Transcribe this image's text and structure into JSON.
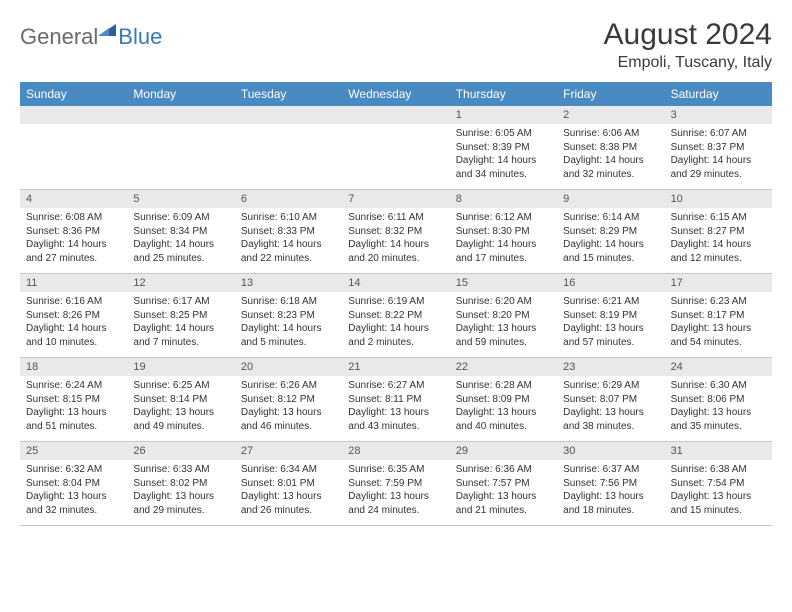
{
  "logo": {
    "text1": "General",
    "text2": "Blue"
  },
  "title": "August 2024",
  "location": "Empoli, Tuscany, Italy",
  "colors": {
    "header_bg": "#4a8ac2",
    "header_text": "#ffffff",
    "daynum_bg": "#e9e9e9",
    "body_text": "#333333",
    "logo_gray": "#6a6a6a",
    "logo_blue": "#3a79b7"
  },
  "fonts": {
    "title_size": 30,
    "location_size": 16,
    "dow_size": 12,
    "daynum_size": 11,
    "detail_size": 10
  },
  "dow": [
    "Sunday",
    "Monday",
    "Tuesday",
    "Wednesday",
    "Thursday",
    "Friday",
    "Saturday"
  ],
  "weeks": [
    [
      null,
      null,
      null,
      null,
      {
        "n": "1",
        "sr": "Sunrise: 6:05 AM",
        "ss": "Sunset: 8:39 PM",
        "dl": "Daylight: 14 hours and 34 minutes."
      },
      {
        "n": "2",
        "sr": "Sunrise: 6:06 AM",
        "ss": "Sunset: 8:38 PM",
        "dl": "Daylight: 14 hours and 32 minutes."
      },
      {
        "n": "3",
        "sr": "Sunrise: 6:07 AM",
        "ss": "Sunset: 8:37 PM",
        "dl": "Daylight: 14 hours and 29 minutes."
      }
    ],
    [
      {
        "n": "4",
        "sr": "Sunrise: 6:08 AM",
        "ss": "Sunset: 8:36 PM",
        "dl": "Daylight: 14 hours and 27 minutes."
      },
      {
        "n": "5",
        "sr": "Sunrise: 6:09 AM",
        "ss": "Sunset: 8:34 PM",
        "dl": "Daylight: 14 hours and 25 minutes."
      },
      {
        "n": "6",
        "sr": "Sunrise: 6:10 AM",
        "ss": "Sunset: 8:33 PM",
        "dl": "Daylight: 14 hours and 22 minutes."
      },
      {
        "n": "7",
        "sr": "Sunrise: 6:11 AM",
        "ss": "Sunset: 8:32 PM",
        "dl": "Daylight: 14 hours and 20 minutes."
      },
      {
        "n": "8",
        "sr": "Sunrise: 6:12 AM",
        "ss": "Sunset: 8:30 PM",
        "dl": "Daylight: 14 hours and 17 minutes."
      },
      {
        "n": "9",
        "sr": "Sunrise: 6:14 AM",
        "ss": "Sunset: 8:29 PM",
        "dl": "Daylight: 14 hours and 15 minutes."
      },
      {
        "n": "10",
        "sr": "Sunrise: 6:15 AM",
        "ss": "Sunset: 8:27 PM",
        "dl": "Daylight: 14 hours and 12 minutes."
      }
    ],
    [
      {
        "n": "11",
        "sr": "Sunrise: 6:16 AM",
        "ss": "Sunset: 8:26 PM",
        "dl": "Daylight: 14 hours and 10 minutes."
      },
      {
        "n": "12",
        "sr": "Sunrise: 6:17 AM",
        "ss": "Sunset: 8:25 PM",
        "dl": "Daylight: 14 hours and 7 minutes."
      },
      {
        "n": "13",
        "sr": "Sunrise: 6:18 AM",
        "ss": "Sunset: 8:23 PM",
        "dl": "Daylight: 14 hours and 5 minutes."
      },
      {
        "n": "14",
        "sr": "Sunrise: 6:19 AM",
        "ss": "Sunset: 8:22 PM",
        "dl": "Daylight: 14 hours and 2 minutes."
      },
      {
        "n": "15",
        "sr": "Sunrise: 6:20 AM",
        "ss": "Sunset: 8:20 PM",
        "dl": "Daylight: 13 hours and 59 minutes."
      },
      {
        "n": "16",
        "sr": "Sunrise: 6:21 AM",
        "ss": "Sunset: 8:19 PM",
        "dl": "Daylight: 13 hours and 57 minutes."
      },
      {
        "n": "17",
        "sr": "Sunrise: 6:23 AM",
        "ss": "Sunset: 8:17 PM",
        "dl": "Daylight: 13 hours and 54 minutes."
      }
    ],
    [
      {
        "n": "18",
        "sr": "Sunrise: 6:24 AM",
        "ss": "Sunset: 8:15 PM",
        "dl": "Daylight: 13 hours and 51 minutes."
      },
      {
        "n": "19",
        "sr": "Sunrise: 6:25 AM",
        "ss": "Sunset: 8:14 PM",
        "dl": "Daylight: 13 hours and 49 minutes."
      },
      {
        "n": "20",
        "sr": "Sunrise: 6:26 AM",
        "ss": "Sunset: 8:12 PM",
        "dl": "Daylight: 13 hours and 46 minutes."
      },
      {
        "n": "21",
        "sr": "Sunrise: 6:27 AM",
        "ss": "Sunset: 8:11 PM",
        "dl": "Daylight: 13 hours and 43 minutes."
      },
      {
        "n": "22",
        "sr": "Sunrise: 6:28 AM",
        "ss": "Sunset: 8:09 PM",
        "dl": "Daylight: 13 hours and 40 minutes."
      },
      {
        "n": "23",
        "sr": "Sunrise: 6:29 AM",
        "ss": "Sunset: 8:07 PM",
        "dl": "Daylight: 13 hours and 38 minutes."
      },
      {
        "n": "24",
        "sr": "Sunrise: 6:30 AM",
        "ss": "Sunset: 8:06 PM",
        "dl": "Daylight: 13 hours and 35 minutes."
      }
    ],
    [
      {
        "n": "25",
        "sr": "Sunrise: 6:32 AM",
        "ss": "Sunset: 8:04 PM",
        "dl": "Daylight: 13 hours and 32 minutes."
      },
      {
        "n": "26",
        "sr": "Sunrise: 6:33 AM",
        "ss": "Sunset: 8:02 PM",
        "dl": "Daylight: 13 hours and 29 minutes."
      },
      {
        "n": "27",
        "sr": "Sunrise: 6:34 AM",
        "ss": "Sunset: 8:01 PM",
        "dl": "Daylight: 13 hours and 26 minutes."
      },
      {
        "n": "28",
        "sr": "Sunrise: 6:35 AM",
        "ss": "Sunset: 7:59 PM",
        "dl": "Daylight: 13 hours and 24 minutes."
      },
      {
        "n": "29",
        "sr": "Sunrise: 6:36 AM",
        "ss": "Sunset: 7:57 PM",
        "dl": "Daylight: 13 hours and 21 minutes."
      },
      {
        "n": "30",
        "sr": "Sunrise: 6:37 AM",
        "ss": "Sunset: 7:56 PM",
        "dl": "Daylight: 13 hours and 18 minutes."
      },
      {
        "n": "31",
        "sr": "Sunrise: 6:38 AM",
        "ss": "Sunset: 7:54 PM",
        "dl": "Daylight: 13 hours and 15 minutes."
      }
    ]
  ]
}
